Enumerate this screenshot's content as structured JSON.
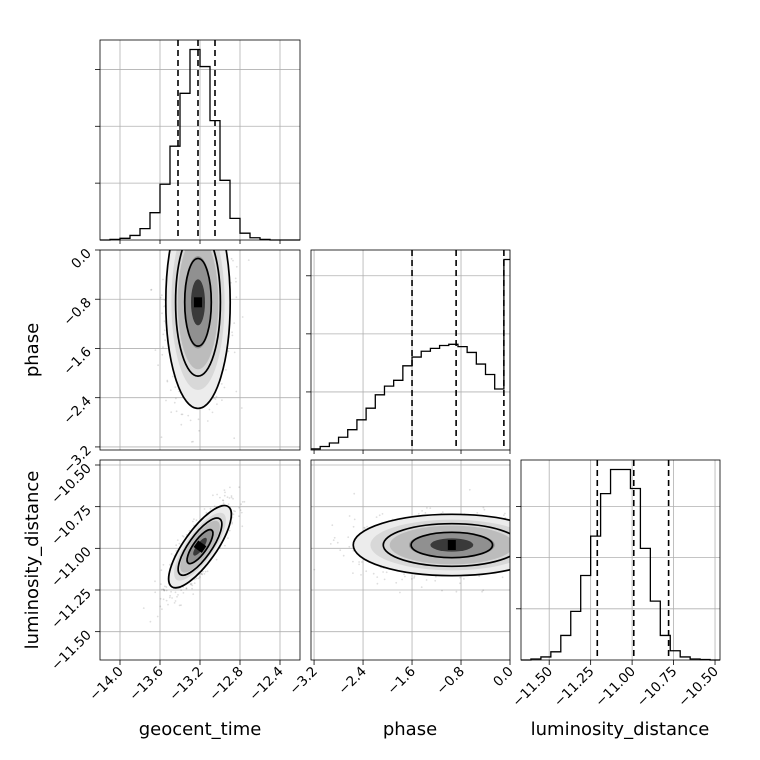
{
  "chart_data": {
    "type": "corner",
    "parameters": [
      {
        "name": "geocent_time",
        "range": [
          -14.2,
          -12.2
        ],
        "ticks": [
          -14.0,
          -13.6,
          -13.2,
          -12.8,
          -12.4
        ],
        "tick_labels": [
          "−14.0",
          "−13.6",
          "−13.2",
          "−12.8",
          "−12.4"
        ]
      },
      {
        "name": "phase",
        "range": [
          -3.25,
          0.0
        ],
        "ticks": [
          -3.2,
          -2.4,
          -1.6,
          -0.8,
          0.0
        ],
        "tick_labels": [
          "−3.2",
          "−2.4",
          "−1.6",
          "−0.8",
          "0.0"
        ]
      },
      {
        "name": "luminosity_distance",
        "range": [
          -11.67,
          -10.47
        ],
        "ticks": [
          -11.5,
          -11.25,
          -11.0,
          -10.75,
          -10.5
        ],
        "tick_labels": [
          "−11.50",
          "−11.25",
          "−11.00",
          "−10.75",
          "−10.50"
        ]
      }
    ],
    "histograms": [
      {
        "param": "geocent_time",
        "bin_edges": [
          -14.2,
          -14.1,
          -14.0,
          -13.9,
          -13.8,
          -13.7,
          -13.6,
          -13.5,
          -13.4,
          -13.3,
          -13.2,
          -13.1,
          -13.0,
          -12.9,
          -12.8,
          -12.7,
          -12.6,
          -12.5,
          -12.4,
          -12.3,
          -12.2
        ],
        "counts": [
          0,
          1,
          3,
          8,
          20,
          48,
          98,
          165,
          258,
          335,
          305,
          210,
          105,
          38,
          12,
          4,
          1,
          0,
          0,
          0
        ],
        "quantiles": [
          -13.42,
          -13.22,
          -13.05
        ]
      },
      {
        "param": "phase",
        "bin_edges": [
          -3.25,
          -3.1,
          -2.95,
          -2.8,
          -2.65,
          -2.5,
          -2.35,
          -2.2,
          -2.05,
          -1.9,
          -1.75,
          -1.6,
          -1.45,
          -1.3,
          -1.15,
          -1.0,
          -0.85,
          -0.7,
          -0.55,
          -0.4,
          -0.25,
          -0.1,
          0.0
        ],
        "counts": [
          2,
          6,
          12,
          22,
          35,
          52,
          72,
          95,
          110,
          120,
          145,
          160,
          170,
          175,
          180,
          182,
          178,
          168,
          148,
          130,
          105,
          328
        ],
        "quantiles": [
          -1.6,
          -0.88,
          -0.1
        ]
      },
      {
        "param": "luminosity_distance",
        "bin_edges": [
          -11.67,
          -11.61,
          -11.55,
          -11.49,
          -11.43,
          -11.37,
          -11.31,
          -11.25,
          -11.19,
          -11.13,
          -11.07,
          -11.01,
          -10.95,
          -10.89,
          -10.83,
          -10.77,
          -10.71,
          -10.65,
          -10.59,
          -10.53,
          -10.47
        ],
        "counts": [
          0,
          2,
          6,
          16,
          48,
          95,
          165,
          242,
          325,
          372,
          372,
          335,
          218,
          115,
          48,
          18,
          6,
          2,
          1,
          0
        ],
        "quantiles": [
          -11.21,
          -10.99,
          -10.78
        ]
      }
    ],
    "joint_panels": [
      {
        "x": "geocent_time",
        "y": "phase",
        "center": [
          -13.22,
          -0.85
        ],
        "spread": [
          0.14,
          0.75
        ],
        "correlation": 0.0
      },
      {
        "x": "geocent_time",
        "y": "luminosity_distance",
        "center": [
          -13.2,
          -10.99
        ],
        "spread": [
          0.13,
          0.11
        ],
        "correlation": 0.8
      },
      {
        "x": "phase",
        "y": "luminosity_distance",
        "center": [
          -0.95,
          -10.98
        ],
        "spread": [
          0.7,
          0.08
        ],
        "correlation": 0.1
      }
    ],
    "grid": true
  }
}
